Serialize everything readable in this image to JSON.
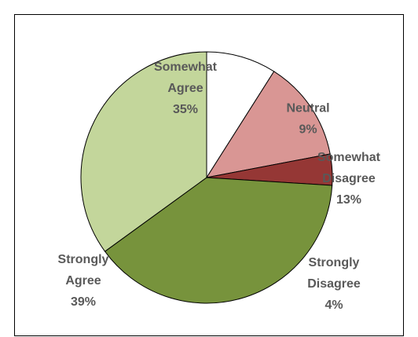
{
  "chart_data": {
    "type": "pie",
    "title": "",
    "slices": [
      {
        "label_lines": [
          "Neutral",
          "9%"
        ],
        "value": 9,
        "color": "#ffffff"
      },
      {
        "label_lines": [
          "Somewhat",
          "Disagree",
          "13%"
        ],
        "value": 13,
        "color": "#d99694"
      },
      {
        "label_lines": [
          "Strongly",
          "Disagree",
          "4%"
        ],
        "value": 4,
        "color": "#953735"
      },
      {
        "label_lines": [
          "Strongly",
          "Agree",
          "39%"
        ],
        "value": 39,
        "color": "#77933c"
      },
      {
        "label_lines": [
          "Somewhat",
          "Agree",
          "35%"
        ],
        "value": 35,
        "color": "#c3d69b"
      }
    ],
    "slice_border_color": "#000000",
    "label_color": "#595959",
    "legend": "none",
    "start": "12 o'clock, clockwise"
  }
}
